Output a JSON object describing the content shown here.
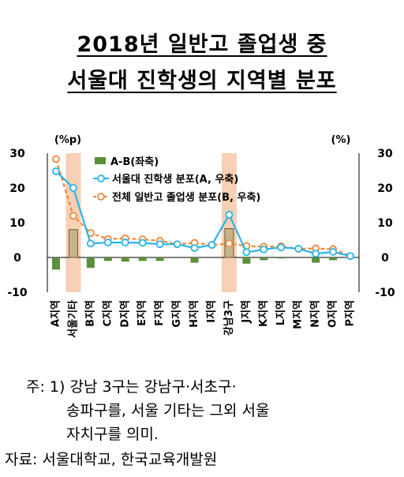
{
  "title": {
    "line1": "2018년 일반고 졸업생 중",
    "line2": "서울대 진학생의 지역별 분포"
  },
  "chart_data": {
    "type": "bar",
    "left_unit": "(%p)",
    "right_unit": "(%)",
    "left_ylim": [
      -10,
      30
    ],
    "right_ylim": [
      -10,
      30
    ],
    "yticks": [
      30,
      20,
      10,
      0,
      -10
    ],
    "categories": [
      "A지역",
      "서울기타",
      "B지역",
      "C지역",
      "D지역",
      "E지역",
      "F지역",
      "G지역",
      "H지역",
      "I지역",
      "강남3구",
      "J지역",
      "K지역",
      "L지역",
      "M지역",
      "N지역",
      "O지역",
      "P지역"
    ],
    "series": [
      {
        "name": "A-B(좌축)",
        "type": "bar",
        "axis": "left",
        "color": "#5b8f3c",
        "values": [
          -3.5,
          8,
          -3,
          -1,
          -1.2,
          -1,
          -1,
          0,
          -1.5,
          0,
          8.3,
          -1.8,
          -0.8,
          -0.3,
          0,
          -1.5,
          -0.8,
          0
        ]
      },
      {
        "name": "서울대 진학생 분포(A, 우축)",
        "type": "line",
        "axis": "right",
        "color": "#29b6e8",
        "values": [
          24.8,
          20,
          4,
          4.3,
          4.3,
          4.2,
          3.8,
          3.8,
          2.7,
          3.6,
          12.3,
          1.5,
          2.3,
          2.9,
          2.5,
          1.1,
          1.6,
          0.4
        ]
      },
      {
        "name": "전체 일반고 졸업생 분포(B, 우축)",
        "type": "line",
        "axis": "right",
        "color": "#f0883a",
        "values": [
          28.3,
          12,
          7,
          5.3,
          5.5,
          5.2,
          4.8,
          3.8,
          4.2,
          3.6,
          4,
          3.3,
          3.1,
          3.2,
          2.5,
          2.6,
          2.4,
          0.4
        ]
      }
    ],
    "highlight_categories": [
      "서울기타",
      "강남3구"
    ],
    "highlight_color": "#f9d0b4",
    "legend_position": "top-center"
  },
  "notes": {
    "line1": "주:  1) 강남 3구는 강남구·서초구·",
    "line2": "송파구를, 서울 기타는 그외 서울",
    "line3": "자치구를 의미.",
    "source": "자료:  서울대학교, 한국교육개발원"
  }
}
